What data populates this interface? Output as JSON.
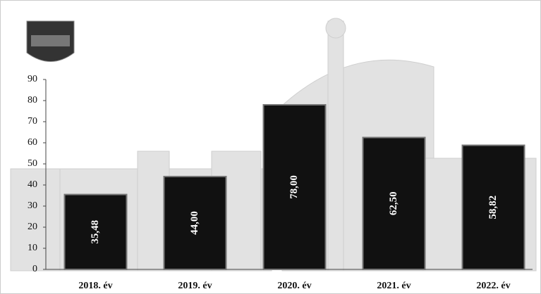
{
  "chart_data": {
    "type": "bar",
    "categories": [
      "2018. év",
      "2019. év",
      "2020. év",
      "2021. év",
      "2022. év"
    ],
    "values": [
      35.48,
      44,
      78,
      62.5,
      58.82
    ],
    "value_labels": [
      "35,48",
      "44,00",
      "78,00",
      "62,50",
      "58,82"
    ],
    "color": "#111111",
    "ylim": [
      0,
      90
    ],
    "yticks": [
      0,
      10,
      20,
      30,
      40,
      50,
      60,
      70,
      80,
      90
    ]
  }
}
